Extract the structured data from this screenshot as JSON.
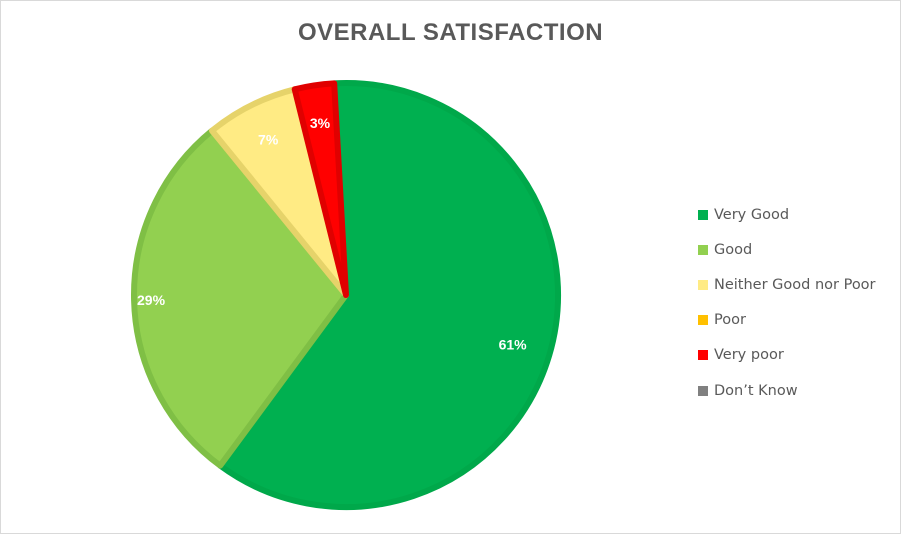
{
  "chart_data": {
    "type": "pie",
    "title": "OVERALL SATISFACTION",
    "categories": [
      "Very Good",
      "Good",
      "Neither Good nor Poor",
      "Poor",
      "Very poor",
      "Don’t Know"
    ],
    "values": [
      61,
      29,
      7,
      0,
      3,
      0
    ],
    "data_labels": [
      "61%",
      "29%",
      "7%",
      "",
      "3%",
      ""
    ],
    "colors": [
      "#00b050",
      "#92d050",
      "#ffeb84",
      "#ffc000",
      "#ff0000",
      "#808080"
    ],
    "border_colors": [
      "#00a84a",
      "#7fbf45",
      "#e6d36a",
      "#e6ac00",
      "#e00000",
      "#707070"
    ],
    "legend_position": "right",
    "start_angle_deg": -3.2
  }
}
